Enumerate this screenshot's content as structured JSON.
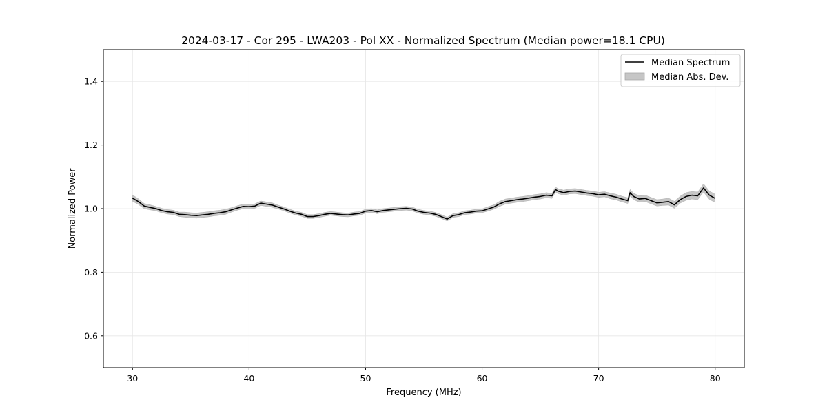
{
  "chart_data": {
    "type": "line",
    "title": "2024-03-17 - Cor 295 - LWA203 - Pol XX - Normalized Spectrum (Median power=18.1 CPU)",
    "xlabel": "Frequency (MHz)",
    "ylabel": "Normalized Power",
    "xlim": [
      27.5,
      82.5
    ],
    "ylim": [
      0.5,
      1.5
    ],
    "xticks": [
      30,
      40,
      50,
      60,
      70,
      80
    ],
    "yticks": [
      0.6,
      0.8,
      1.0,
      1.2,
      1.4
    ],
    "xtick_labels": [
      "30",
      "40",
      "50",
      "60",
      "70",
      "80"
    ],
    "ytick_labels": [
      "0.6",
      "0.8",
      "1.0",
      "1.2",
      "1.4"
    ],
    "grid": true,
    "legend_position": "top-right",
    "legend": [
      {
        "label": "Median Spectrum",
        "kind": "line",
        "color": "#000000"
      },
      {
        "label": "Median Abs. Dev.",
        "kind": "patch",
        "color": "#c6c6c6"
      }
    ],
    "series": [
      {
        "name": "Median Spectrum",
        "color": "#000000",
        "band_color": "#c6c6c6",
        "x": [
          30.0,
          30.5,
          31.0,
          31.5,
          32.0,
          32.5,
          33.0,
          33.5,
          34.0,
          34.5,
          35.0,
          35.5,
          36.0,
          36.5,
          37.0,
          37.5,
          38.0,
          38.5,
          39.0,
          39.5,
          40.0,
          40.5,
          41.0,
          41.5,
          42.0,
          42.5,
          43.0,
          43.5,
          44.0,
          44.5,
          45.0,
          45.5,
          46.0,
          46.5,
          47.0,
          47.5,
          48.0,
          48.5,
          49.0,
          49.5,
          50.0,
          50.5,
          51.0,
          51.5,
          52.0,
          52.5,
          53.0,
          53.5,
          54.0,
          54.5,
          55.0,
          55.5,
          56.0,
          56.5,
          57.0,
          57.5,
          58.0,
          58.5,
          59.0,
          59.5,
          60.0,
          60.5,
          61.0,
          61.5,
          62.0,
          62.5,
          63.0,
          63.5,
          64.0,
          64.5,
          65.0,
          65.5,
          66.0,
          66.3,
          66.5,
          67.0,
          67.5,
          68.0,
          68.5,
          69.0,
          69.5,
          70.0,
          70.5,
          71.0,
          71.5,
          72.0,
          72.5,
          72.7,
          73.0,
          73.5,
          74.0,
          74.5,
          75.0,
          75.5,
          76.0,
          76.5,
          77.0,
          77.5,
          78.0,
          78.5,
          79.0,
          79.5,
          80.0
        ],
        "values": [
          1.033,
          1.022,
          1.008,
          1.004,
          1.0,
          0.994,
          0.99,
          0.988,
          0.982,
          0.981,
          0.979,
          0.978,
          0.98,
          0.982,
          0.985,
          0.987,
          0.99,
          0.996,
          1.002,
          1.007,
          1.006,
          1.008,
          1.017,
          1.014,
          1.011,
          1.005,
          0.999,
          0.992,
          0.986,
          0.982,
          0.975,
          0.975,
          0.978,
          0.982,
          0.985,
          0.983,
          0.981,
          0.98,
          0.983,
          0.985,
          0.992,
          0.994,
          0.99,
          0.994,
          0.996,
          0.998,
          1.0,
          1.001,
          0.999,
          0.992,
          0.988,
          0.986,
          0.982,
          0.975,
          0.967,
          0.978,
          0.981,
          0.987,
          0.989,
          0.992,
          0.993,
          0.999,
          1.005,
          1.015,
          1.022,
          1.025,
          1.028,
          1.03,
          1.033,
          1.036,
          1.038,
          1.042,
          1.04,
          1.06,
          1.055,
          1.05,
          1.054,
          1.055,
          1.052,
          1.049,
          1.047,
          1.043,
          1.045,
          1.04,
          1.036,
          1.03,
          1.025,
          1.05,
          1.038,
          1.03,
          1.032,
          1.025,
          1.018,
          1.02,
          1.022,
          1.012,
          1.028,
          1.038,
          1.042,
          1.04,
          1.065,
          1.042,
          1.032
        ],
        "mad": [
          0.01,
          0.009,
          0.008,
          0.008,
          0.007,
          0.007,
          0.007,
          0.007,
          0.007,
          0.008,
          0.008,
          0.008,
          0.008,
          0.008,
          0.008,
          0.008,
          0.008,
          0.007,
          0.007,
          0.007,
          0.007,
          0.007,
          0.007,
          0.007,
          0.007,
          0.006,
          0.006,
          0.006,
          0.006,
          0.006,
          0.006,
          0.006,
          0.006,
          0.006,
          0.006,
          0.006,
          0.006,
          0.006,
          0.006,
          0.006,
          0.006,
          0.006,
          0.006,
          0.006,
          0.006,
          0.006,
          0.006,
          0.006,
          0.006,
          0.006,
          0.006,
          0.006,
          0.006,
          0.006,
          0.006,
          0.006,
          0.006,
          0.006,
          0.006,
          0.006,
          0.006,
          0.007,
          0.007,
          0.008,
          0.008,
          0.008,
          0.008,
          0.008,
          0.008,
          0.008,
          0.008,
          0.008,
          0.008,
          0.008,
          0.008,
          0.008,
          0.008,
          0.008,
          0.008,
          0.008,
          0.008,
          0.008,
          0.008,
          0.009,
          0.009,
          0.009,
          0.009,
          0.01,
          0.01,
          0.01,
          0.01,
          0.01,
          0.01,
          0.01,
          0.011,
          0.011,
          0.011,
          0.012,
          0.012,
          0.012,
          0.013,
          0.013,
          0.013
        ]
      }
    ]
  }
}
